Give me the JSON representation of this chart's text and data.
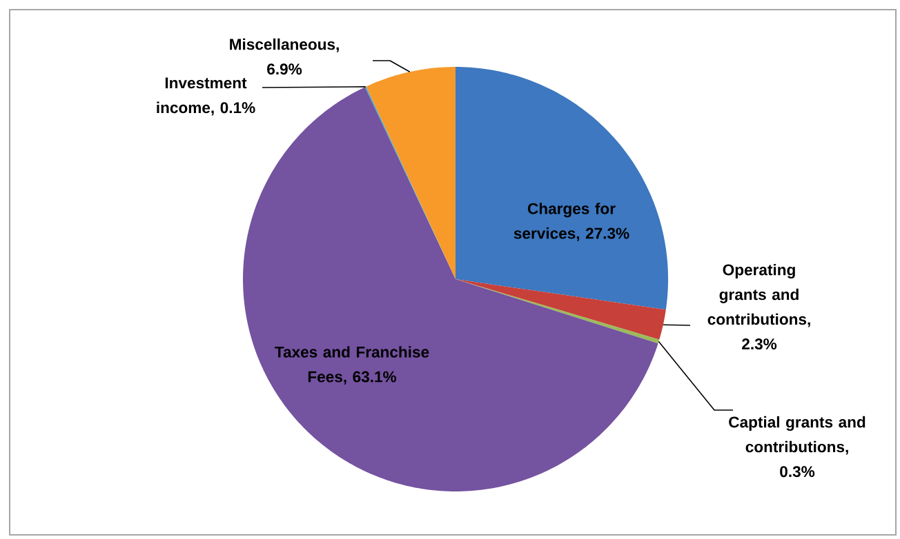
{
  "chart_data": {
    "type": "pie",
    "categories": [
      "Charges for services",
      "Operating grants and contributions",
      "Captial grants and contributions",
      "Taxes and Franchise Fees",
      "Investment income",
      "Miscellaneous"
    ],
    "values": [
      27.3,
      2.3,
      0.3,
      63.1,
      0.1,
      6.9
    ],
    "value_labels": [
      ", 27.3%",
      ", 2.3%",
      ", 0.3%",
      ", 63.1%",
      ", 0.1%",
      ", 6.9%"
    ],
    "colors": [
      "#3d78c0",
      "#c8403a",
      "#9bbb59",
      "#7453a0",
      "#4bacc6",
      "#f79a2a"
    ]
  }
}
